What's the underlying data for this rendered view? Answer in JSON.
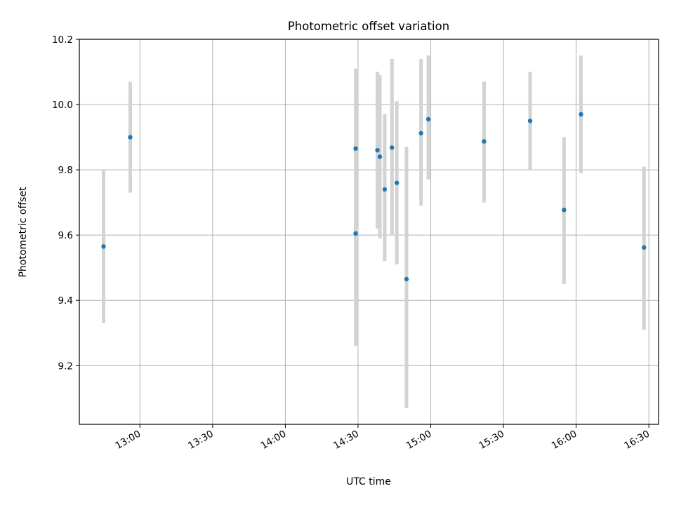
{
  "chart_data": {
    "type": "scatter",
    "title": "Photometric offset variation",
    "xlabel": "UTC time",
    "ylabel": "Photometric offset",
    "x_ticks": [
      "13:00",
      "13:30",
      "14:00",
      "14:30",
      "15:00",
      "15:30",
      "16:00",
      "16:30"
    ],
    "y_ticks": [
      "9.2",
      "9.4",
      "9.6",
      "9.8",
      "10.0",
      "10.2"
    ],
    "xlim": [
      "12:35",
      "16:34"
    ],
    "ylim": [
      9.02,
      10.2
    ],
    "grid": true,
    "marker_color": "#1f77b4",
    "errorbar_color": "#d3d3d3",
    "points": [
      {
        "t": "12:45",
        "y": 9.565,
        "lo": 9.33,
        "hi": 9.8
      },
      {
        "t": "12:56",
        "y": 9.9,
        "lo": 9.73,
        "hi": 10.07
      },
      {
        "t": "14:29",
        "y": 9.865,
        "lo": 9.62,
        "hi": 10.11
      },
      {
        "t": "14:29",
        "y": 9.605,
        "lo": 9.26,
        "hi": 9.95
      },
      {
        "t": "14:38",
        "y": 9.86,
        "lo": 9.62,
        "hi": 10.1
      },
      {
        "t": "14:39",
        "y": 9.84,
        "lo": 9.59,
        "hi": 10.09
      },
      {
        "t": "14:41",
        "y": 9.74,
        "lo": 9.52,
        "hi": 9.97
      },
      {
        "t": "14:44",
        "y": 9.868,
        "lo": 9.6,
        "hi": 10.14
      },
      {
        "t": "14:46",
        "y": 9.76,
        "lo": 9.51,
        "hi": 10.01
      },
      {
        "t": "14:50",
        "y": 9.465,
        "lo": 9.07,
        "hi": 9.87
      },
      {
        "t": "14:56",
        "y": 9.912,
        "lo": 9.69,
        "hi": 10.14
      },
      {
        "t": "14:59",
        "y": 9.955,
        "lo": 9.77,
        "hi": 10.15
      },
      {
        "t": "15:22",
        "y": 9.887,
        "lo": 9.7,
        "hi": 10.07
      },
      {
        "t": "15:41",
        "y": 9.95,
        "lo": 9.8,
        "hi": 10.1
      },
      {
        "t": "15:55",
        "y": 9.677,
        "lo": 9.45,
        "hi": 9.9
      },
      {
        "t": "16:02",
        "y": 9.97,
        "lo": 9.79,
        "hi": 10.15
      },
      {
        "t": "16:28",
        "y": 9.562,
        "lo": 9.31,
        "hi": 9.81
      }
    ]
  }
}
